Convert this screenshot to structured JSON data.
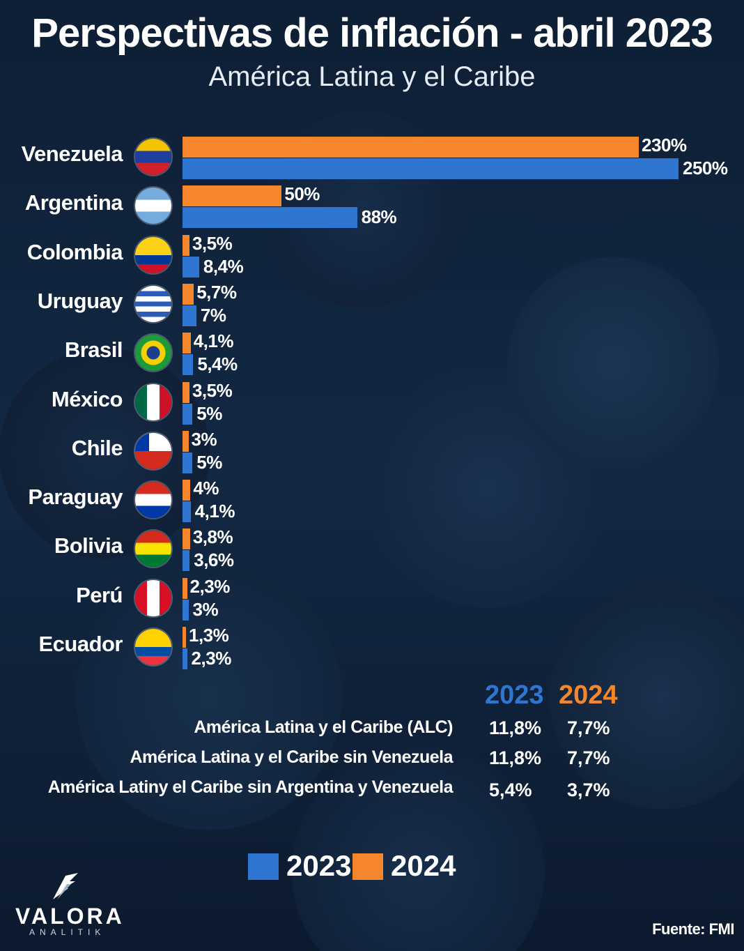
{
  "title": "Perspectivas de inflación - abril 2023",
  "subtitle": "América Latina y el Caribe",
  "colors": {
    "y2023": "#2f76d2",
    "y2024": "#f5862c"
  },
  "chart_data": {
    "type": "bar",
    "orientation": "horizontal",
    "categories": [
      "Venezuela",
      "Argentina",
      "Colombia",
      "Uruguay",
      "Brasil",
      "México",
      "Chile",
      "Paraguay",
      "Bolivia",
      "Perú",
      "Ecuador"
    ],
    "series": [
      {
        "name": "2024",
        "values": [
          230,
          50,
          3.5,
          5.7,
          4.1,
          3.5,
          3,
          4,
          3.8,
          2.3,
          1.3
        ],
        "labels": [
          "230%",
          "50%",
          "3,5%",
          "5,7%",
          "4,1%",
          "3,5%",
          "3%",
          "4%",
          "3,8%",
          "2,3%",
          "1,3%"
        ]
      },
      {
        "name": "2023",
        "values": [
          250,
          88,
          8.4,
          7,
          5.4,
          5,
          5,
          4.1,
          3.6,
          3,
          2.3
        ],
        "labels": [
          "250%",
          "88%",
          "8,4%",
          "7%",
          "5,4%",
          "5%",
          "5%",
          "4,1%",
          "3,6%",
          "3%",
          "2,3%"
        ]
      }
    ]
  },
  "flags": {
    "Venezuela": "venezuela-flag-icon",
    "Argentina": "argentina-flag-icon",
    "Colombia": "colombia-flag-icon",
    "Uruguay": "uruguay-flag-icon",
    "Brasil": "brasil-flag-icon",
    "México": "mexico-flag-icon",
    "Chile": "chile-flag-icon",
    "Paraguay": "paraguay-flag-icon",
    "Bolivia": "bolivia-flag-icon",
    "Perú": "peru-flag-icon",
    "Ecuador": "ecuador-flag-icon"
  },
  "summary": {
    "head_2023": "2023",
    "head_2024": "2024",
    "rows": [
      {
        "label": "América Latina y el Caribe (ALC)",
        "v2023": "11,8%",
        "v2024": "7,7%"
      },
      {
        "label": "América Latina y el Caribe sin Venezuela",
        "v2023": "11,8%",
        "v2024": "7,7%"
      },
      {
        "label": "América Latiny el Caribe sin Argentina y Venezuela",
        "v2023": "5,4%",
        "v2024": "3,7%"
      }
    ]
  },
  "legend": {
    "y2023": "2023",
    "y2024": "2024"
  },
  "logo": {
    "name": "VALORA",
    "sub": "ANALITIK",
    "icon": "valora-bird-logo-icon"
  },
  "source": "Fuente: FMI"
}
